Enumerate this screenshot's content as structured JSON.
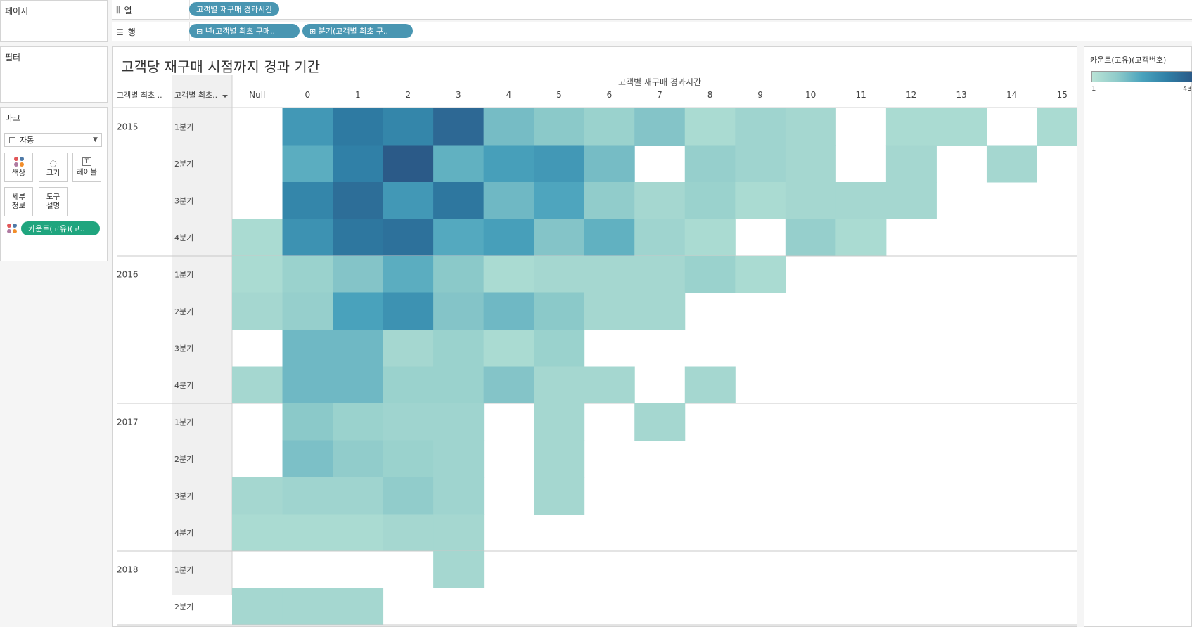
{
  "cards": {
    "pages": "페이지",
    "filters": "필터",
    "marks": "마크"
  },
  "marks": {
    "type": "자동",
    "buttons": {
      "color": "색상",
      "size": "크기",
      "label": "레이블",
      "detail": [
        "세부",
        "정보"
      ],
      "tooltip": [
        "도구",
        "설명"
      ]
    },
    "pill": "카운트(고유)(고.."
  },
  "shelves": {
    "columns": {
      "label": "열",
      "pills": [
        "고객별 재구매 경과시간"
      ]
    },
    "rows": {
      "label": "행",
      "pills": [
        "⊟ 년(고객별 최초 구매..",
        "⊞ 분기(고객별 최초 구.."
      ]
    }
  },
  "colors": {
    "accent_green": "#1fa57e",
    "pill_blue": "#4996b2",
    "heat_low": "#b9e3d6",
    "heat_high": "#2b5a88"
  },
  "legend": {
    "title": "카운트(고유)(고객번호)",
    "min": "1",
    "max": "43"
  },
  "chart_data": {
    "type": "heatmap",
    "title": "고객당 재구매 시점까지 경과 기간",
    "xlabel": "고객별 재구매 경과시간",
    "row_headers": [
      "고객별 최초 ..",
      "고객별 최초.."
    ],
    "x": [
      "Null",
      "0",
      "1",
      "2",
      "3",
      "4",
      "5",
      "6",
      "7",
      "8",
      "9",
      "10",
      "11",
      "12",
      "13",
      "14",
      "15"
    ],
    "years": [
      {
        "year": "2015",
        "quarters": [
          "1분기",
          "2분기",
          "3분기",
          "4분기"
        ]
      },
      {
        "year": "2016",
        "quarters": [
          "1분기",
          "2분기",
          "3분기",
          "4분기"
        ]
      },
      {
        "year": "2017",
        "quarters": [
          "1분기",
          "2분기",
          "3분기",
          "4분기"
        ]
      },
      {
        "year": "2018",
        "quarters": [
          "1분기",
          "2분기"
        ]
      }
    ],
    "values": [
      [
        null,
        22,
        32,
        28,
        38,
        12,
        9,
        6,
        10,
        3,
        5,
        4,
        null,
        3,
        3,
        null,
        3
      ],
      [
        null,
        16,
        30,
        43,
        15,
        20,
        22,
        12,
        null,
        7,
        5,
        4,
        null,
        4,
        null,
        4,
        null
      ],
      [
        null,
        28,
        36,
        22,
        33,
        13,
        18,
        8,
        4,
        6,
        3,
        4,
        4,
        4,
        null,
        null,
        null
      ],
      [
        3,
        24,
        33,
        35,
        17,
        20,
        10,
        15,
        5,
        3,
        null,
        7,
        3,
        null,
        null,
        null,
        null
      ],
      [
        3,
        6,
        10,
        16,
        9,
        3,
        4,
        4,
        4,
        6,
        3,
        null,
        null,
        null,
        null,
        null,
        null
      ],
      [
        4,
        7,
        19,
        24,
        10,
        13,
        9,
        4,
        4,
        null,
        null,
        null,
        null,
        null,
        null,
        null,
        null
      ],
      [
        null,
        13,
        13,
        4,
        6,
        3,
        6,
        null,
        null,
        null,
        null,
        null,
        null,
        null,
        null,
        null,
        null
      ],
      [
        4,
        13,
        13,
        6,
        6,
        10,
        4,
        4,
        null,
        4,
        null,
        null,
        null,
        null,
        null,
        null,
        null
      ],
      [
        null,
        9,
        6,
        5,
        5,
        null,
        4,
        null,
        4,
        null,
        null,
        null,
        null,
        null,
        null,
        null,
        null
      ],
      [
        null,
        11,
        8,
        6,
        5,
        null,
        4,
        null,
        null,
        null,
        null,
        null,
        null,
        null,
        null,
        null,
        null
      ],
      [
        4,
        5,
        5,
        8,
        5,
        null,
        4,
        null,
        null,
        null,
        null,
        null,
        null,
        null,
        null,
        null,
        null
      ],
      [
        3,
        3,
        3,
        4,
        4,
        null,
        null,
        null,
        null,
        null,
        null,
        null,
        null,
        null,
        null,
        null,
        null
      ],
      [
        null,
        null,
        null,
        null,
        4,
        null,
        null,
        null,
        null,
        null,
        null,
        null,
        null,
        null,
        null,
        null,
        null
      ],
      [
        4,
        4,
        4,
        null,
        null,
        null,
        null,
        null,
        null,
        null,
        null,
        null,
        null,
        null,
        null,
        null,
        null
      ]
    ],
    "color_range": [
      1,
      43
    ]
  }
}
